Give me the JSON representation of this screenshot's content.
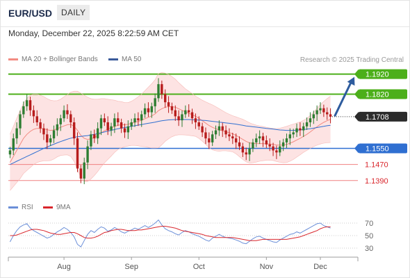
{
  "header": {
    "symbol": "EUR/USD",
    "period": "DAILY",
    "datetime": "Monday, December 22, 2025 8:22:59 AM CET"
  },
  "legend": {
    "bollinger": {
      "label": "MA 20 + Bollinger Bands",
      "color": "#f28b82"
    },
    "ma50": {
      "label": "MA 50",
      "color": "#3a5a9a"
    },
    "rsi": {
      "label": "RSI",
      "color": "#6b8fd8"
    },
    "rsi_ma": {
      "label": "9MA",
      "color": "#d9262c"
    }
  },
  "credit": "Research © 2025 Trading Central",
  "colors": {
    "up_candle": "#2e7d32",
    "down_candle": "#b71c1c",
    "resistance": "#4caf1a",
    "pivot": "#2f6fd1",
    "support": "#f08080",
    "band_fill": "#fde3e3",
    "arrow": "#2e5c9e",
    "last_price_tag": "#2b2b2b"
  },
  "chart_data": {
    "type": "candlestick",
    "y_range": [
      1.132,
      1.195
    ],
    "x_axis_labels": [
      "Aug",
      "Sep",
      "Oct",
      "Nov",
      "Dec"
    ],
    "label_positions": [
      16,
      36,
      56,
      76,
      92
    ],
    "levels": [
      {
        "value": 1.192,
        "label": "1.1920",
        "kind": "resistance"
      },
      {
        "value": 1.182,
        "label": "1.1820",
        "kind": "resistance"
      },
      {
        "value": 1.1708,
        "label": "1.1708",
        "kind": "last"
      },
      {
        "value": 1.155,
        "label": "1.1550",
        "kind": "pivot"
      },
      {
        "value": 1.147,
        "label": "1.1470",
        "kind": "support"
      },
      {
        "value": 1.139,
        "label": "1.1390",
        "kind": "support"
      }
    ],
    "forecast_arrow": {
      "from": 1.171,
      "to": 1.192
    },
    "close": [
      1.154,
      1.16,
      1.165,
      1.172,
      1.176,
      1.179,
      1.174,
      1.171,
      1.168,
      1.165,
      1.162,
      1.158,
      1.16,
      1.164,
      1.167,
      1.17,
      1.174,
      1.172,
      1.168,
      1.16,
      1.145,
      1.14,
      1.148,
      1.156,
      1.162,
      1.16,
      1.165,
      1.17,
      1.168,
      1.164,
      1.166,
      1.17,
      1.168,
      1.165,
      1.163,
      1.166,
      1.168,
      1.17,
      1.169,
      1.172,
      1.175,
      1.173,
      1.176,
      1.18,
      1.187,
      1.182,
      1.178,
      1.176,
      1.174,
      1.171,
      1.169,
      1.172,
      1.174,
      1.173,
      1.17,
      1.168,
      1.166,
      1.163,
      1.16,
      1.158,
      1.162,
      1.164,
      1.166,
      1.164,
      1.162,
      1.161,
      1.16,
      1.158,
      1.156,
      1.153,
      1.152,
      1.155,
      1.158,
      1.16,
      1.161,
      1.159,
      1.157,
      1.156,
      1.154,
      1.153,
      1.156,
      1.158,
      1.16,
      1.162,
      1.163,
      1.165,
      1.164,
      1.166,
      1.168,
      1.17,
      1.172,
      1.174,
      1.175,
      1.173,
      1.172,
      1.1708
    ],
    "ma20": [
      1.148,
      1.151,
      1.154,
      1.157,
      1.16,
      1.162,
      1.1635,
      1.1645,
      1.165,
      1.165,
      1.1648,
      1.1643,
      1.164,
      1.1642,
      1.1648,
      1.1655,
      1.1662,
      1.1668,
      1.167,
      1.166,
      1.164,
      1.1615,
      1.16,
      1.1595,
      1.1598,
      1.1605,
      1.1615,
      1.1628,
      1.1638,
      1.1645,
      1.1652,
      1.166,
      1.1665,
      1.1668,
      1.1668,
      1.167,
      1.1675,
      1.168,
      1.1685,
      1.169,
      1.1698,
      1.1705,
      1.1712,
      1.1722,
      1.1738,
      1.1748,
      1.1755,
      1.1758,
      1.1758,
      1.1755,
      1.1748,
      1.174,
      1.1732,
      1.1725,
      1.1718,
      1.171,
      1.17,
      1.1688,
      1.1676,
      1.1664,
      1.1655,
      1.1648,
      1.1642,
      1.1638,
      1.1633,
      1.1628,
      1.1623,
      1.1615,
      1.1605,
      1.1595,
      1.1585,
      1.1578,
      1.1575,
      1.1574,
      1.1574,
      1.1574,
      1.1573,
      1.1572,
      1.157,
      1.1567,
      1.1566,
      1.1567,
      1.157,
      1.1576,
      1.1583,
      1.1592,
      1.16,
      1.161,
      1.162,
      1.1632,
      1.1645,
      1.1658,
      1.167,
      1.168,
      1.1688,
      1.1695
    ],
    "ma50": [
      1.147,
      1.1478,
      1.1486,
      1.1494,
      1.1502,
      1.151,
      1.1518,
      1.1526,
      1.1534,
      1.1542,
      1.155,
      1.1557,
      1.1564,
      1.1571,
      1.1578,
      1.1584,
      1.159,
      1.1596,
      1.1601,
      1.1605,
      1.1608,
      1.161,
      1.1612,
      1.1614,
      1.1617,
      1.162,
      1.1624,
      1.1628,
      1.1632,
      1.1636,
      1.164,
      1.1644,
      1.1648,
      1.1651,
      1.1654,
      1.1657,
      1.166,
      1.1663,
      1.1666,
      1.1669,
      1.1672,
      1.1675,
      1.1678,
      1.1681,
      1.1685,
      1.1688,
      1.169,
      1.1692,
      1.1693,
      1.1694,
      1.1694,
      1.1694,
      1.1694,
      1.1694,
      1.1693,
      1.1692,
      1.1691,
      1.169,
      1.1689,
      1.1687,
      1.1685,
      1.1683,
      1.1681,
      1.1679,
      1.1677,
      1.1675,
      1.1673,
      1.1671,
      1.1668,
      1.1665,
      1.1662,
      1.166,
      1.1658,
      1.1656,
      1.1654,
      1.1652,
      1.165,
      1.1648,
      1.1646,
      1.1644,
      1.1642,
      1.1641,
      1.164,
      1.164,
      1.164,
      1.1641,
      1.1642,
      1.1644,
      1.1646,
      1.1648,
      1.1651,
      1.1654,
      1.1657,
      1.166,
      1.1663,
      1.1665
    ],
    "band_width": [
      0.014,
      0.015,
      0.016,
      0.017,
      0.0175,
      0.018,
      0.018,
      0.0175,
      0.017,
      0.0165,
      0.016,
      0.0155,
      0.015,
      0.0145,
      0.014,
      0.014,
      0.0145,
      0.015,
      0.016,
      0.0175,
      0.0195,
      0.021,
      0.0215,
      0.021,
      0.02,
      0.019,
      0.018,
      0.017,
      0.016,
      0.015,
      0.014,
      0.013,
      0.012,
      0.0115,
      0.011,
      0.0108,
      0.011,
      0.0115,
      0.0122,
      0.013,
      0.014,
      0.015,
      0.016,
      0.017,
      0.0185,
      0.018,
      0.017,
      0.016,
      0.015,
      0.014,
      0.013,
      0.0122,
      0.0115,
      0.011,
      0.0105,
      0.01,
      0.01,
      0.0102,
      0.0106,
      0.011,
      0.0112,
      0.011,
      0.0106,
      0.01,
      0.0095,
      0.0092,
      0.009,
      0.0092,
      0.0096,
      0.01,
      0.0102,
      0.01,
      0.0096,
      0.0092,
      0.0088,
      0.0085,
      0.0082,
      0.008,
      0.008,
      0.0082,
      0.0085,
      0.0088,
      0.009,
      0.009,
      0.0088,
      0.0085,
      0.0082,
      0.008,
      0.008,
      0.0082,
      0.0086,
      0.0092,
      0.0098,
      0.0104,
      0.011,
      0.0115
    ]
  },
  "rsi": {
    "y_range": [
      20,
      80
    ],
    "ticks": [
      {
        "value": 70,
        "label": "70"
      },
      {
        "value": 50,
        "label": "50"
      },
      {
        "value": 30,
        "label": "30"
      }
    ],
    "values": [
      40,
      50,
      58,
      64,
      67,
      69,
      62,
      58,
      55,
      52,
      49,
      46,
      48,
      52,
      56,
      59,
      63,
      60,
      55,
      48,
      36,
      32,
      42,
      52,
      58,
      55,
      60,
      64,
      62,
      57,
      59,
      63,
      60,
      56,
      54,
      57,
      59,
      62,
      60,
      63,
      66,
      63,
      66,
      70,
      75,
      67,
      61,
      58,
      56,
      53,
      51,
      55,
      58,
      56,
      53,
      51,
      49,
      46,
      43,
      41,
      46,
      49,
      52,
      49,
      47,
      46,
      45,
      43,
      41,
      38,
      37,
      41,
      45,
      48,
      49,
      46,
      44,
      42,
      40,
      39,
      43,
      46,
      49,
      52,
      53,
      56,
      54,
      57,
      60,
      63,
      66,
      69,
      70,
      66,
      64,
      62
    ],
    "ma9": [
      50,
      50,
      51,
      53,
      55,
      57,
      59,
      60,
      60,
      59,
      58,
      56,
      54,
      53,
      52,
      52,
      53,
      54,
      55,
      55,
      53,
      50,
      47,
      46,
      46,
      47,
      49,
      52,
      55,
      56,
      58,
      59,
      60,
      60,
      59,
      58,
      58,
      58,
      59,
      59,
      60,
      61,
      62,
      63,
      64,
      65,
      65,
      64,
      63,
      62,
      60,
      58,
      57,
      56,
      55,
      54,
      53,
      52,
      50,
      49,
      48,
      47,
      47,
      47,
      47,
      47,
      47,
      46,
      45,
      44,
      43,
      42,
      42,
      42,
      43,
      44,
      44,
      44,
      44,
      44,
      44,
      44,
      44,
      45,
      46,
      47,
      48,
      50,
      52,
      54,
      56,
      58,
      61,
      63,
      64,
      64
    ]
  }
}
